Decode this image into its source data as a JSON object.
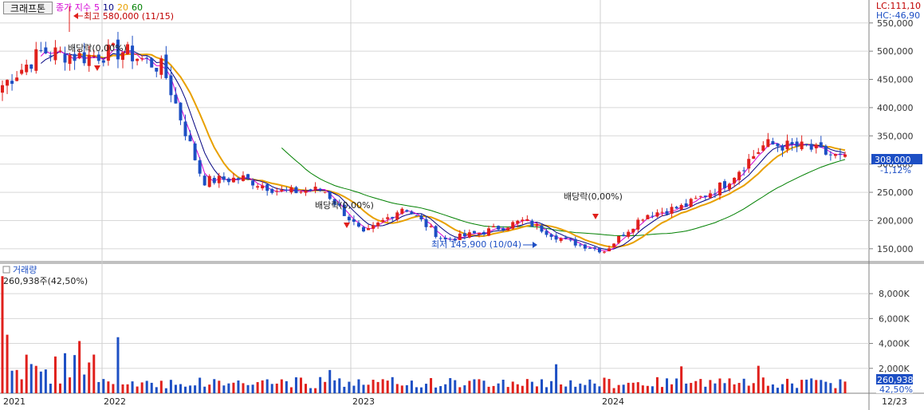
{
  "stock_button": {
    "label": "크래프톤"
  },
  "ma_legend": {
    "label": "종가 지수",
    "periods": [
      "5",
      "10",
      "20",
      "60"
    ],
    "colors": [
      "#d400d4",
      "#000080",
      "#e8a000",
      "#008000"
    ]
  },
  "info": {
    "lc": "LC:111,10",
    "hc": "HC:-46,90"
  },
  "price_panel": {
    "y_ticks": [
      "550,000",
      "500,000",
      "450,000",
      "400,000",
      "350,000",
      "300,000",
      "250,000",
      "200,000",
      "150,000"
    ],
    "current_price": "308,000",
    "change_pct": "-1,12%",
    "max_label": "최고 580,000 (11/15)",
    "min_label": "최저 145,900 (10/04)",
    "dividend_labels": [
      "배당락(0,00%)",
      "배당락(0,00%)",
      "배당락(0,00%)"
    ]
  },
  "volume_panel": {
    "title": "거래량",
    "first_value": "260,938주(42,50%)",
    "y_ticks": [
      "8,000K",
      "6,000K",
      "4,000K",
      "2,000K"
    ],
    "current_value": "260,938",
    "current_pct": "42,50%"
  },
  "x_axis": {
    "labels": [
      "2021",
      "2022",
      "2023",
      "2024",
      "12/23"
    ]
  },
  "colors": {
    "up": "#e0201c",
    "down": "#1d4fc4",
    "accent_box": "#1d4fc4"
  },
  "chart_data": {
    "type": "line",
    "title": "",
    "price_range": [
      130000,
      585000
    ],
    "volume_range": [
      0,
      9800
    ],
    "series_close_keypoints": [
      {
        "x": "2021-08",
        "y": 440000
      },
      {
        "x": "2021-09",
        "y": 500000
      },
      {
        "x": "2021-10",
        "y": 490000
      },
      {
        "x": "2021-11",
        "y": 500000
      },
      {
        "x": "2021-12",
        "y": 470000
      },
      {
        "x": "2022-01",
        "y": 270000
      },
      {
        "x": "2022-03",
        "y": 275000
      },
      {
        "x": "2022-06",
        "y": 250000
      },
      {
        "x": "2022-08",
        "y": 255000
      },
      {
        "x": "2022-10",
        "y": 175000
      },
      {
        "x": "2022-11",
        "y": 225000
      },
      {
        "x": "2022-12",
        "y": 165000
      },
      {
        "x": "2023-03",
        "y": 180000
      },
      {
        "x": "2023-06",
        "y": 200000
      },
      {
        "x": "2023-08",
        "y": 165000
      },
      {
        "x": "2023-10",
        "y": 146000
      },
      {
        "x": "2023-12",
        "y": 210000
      },
      {
        "x": "2024-03",
        "y": 225000
      },
      {
        "x": "2024-06",
        "y": 265000
      },
      {
        "x": "2024-08",
        "y": 335000
      },
      {
        "x": "2024-10",
        "y": 330000
      },
      {
        "x": "2024-12",
        "y": 308000
      }
    ]
  }
}
